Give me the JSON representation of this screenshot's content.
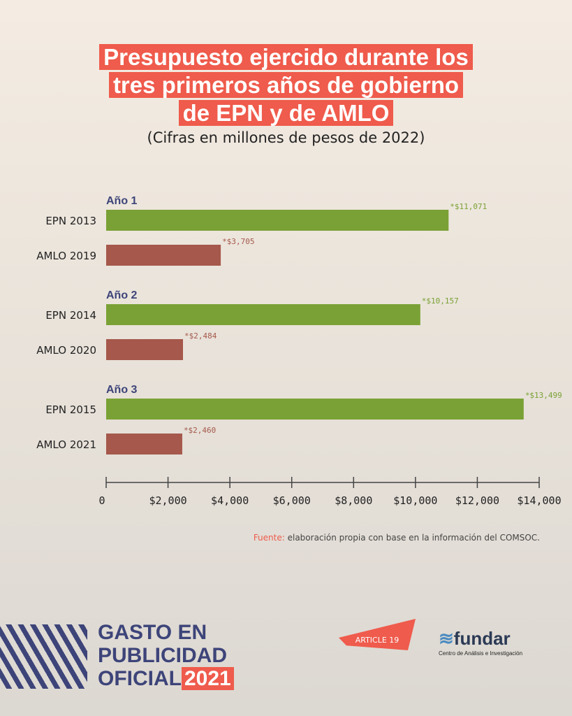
{
  "chart_data": {
    "type": "bar",
    "orientation": "horizontal",
    "title": [
      "Presupuesto ejercido durante los",
      "tres primeros años de gobierno",
      "de EPN y de AMLO"
    ],
    "subtitle": "(Cifras en millones de pesos de 2022)",
    "xlim": [
      0,
      14000
    ],
    "xticks": [
      "0",
      "$2,000",
      "$4,000",
      "$6,000",
      "$8,000",
      "$10,000",
      "$12,000",
      "$14,000"
    ],
    "groups": [
      {
        "label": "Año 1",
        "bars": [
          {
            "category": "EPN 2013",
            "value": 11071,
            "label": "*$11,071",
            "color": "#7aa135"
          },
          {
            "category": "AMLO 2019",
            "value": 3705,
            "label": "*$3,705",
            "color": "#a5584b"
          }
        ]
      },
      {
        "label": "Año 2",
        "bars": [
          {
            "category": "EPN 2014",
            "value": 10157,
            "label": "*$10,157",
            "color": "#7aa135"
          },
          {
            "category": "AMLO 2020",
            "value": 2484,
            "label": "*$2,484",
            "color": "#a5584b"
          }
        ]
      },
      {
        "label": "Año 3",
        "bars": [
          {
            "category": "EPN 2015",
            "value": 13499,
            "label": "*$13,499",
            "color": "#7aa135"
          },
          {
            "category": "AMLO 2021",
            "value": 2460,
            "label": "*$2,460",
            "color": "#a5584b"
          }
        ]
      }
    ],
    "grid": false
  },
  "source": {
    "label": "Fuente:",
    "text": " elaboración propia con base en la información del COMSOC."
  },
  "branding": {
    "line1": "GASTO EN",
    "line2": "PUBLICIDAD",
    "line3": "OFICIAL",
    "year": "2021",
    "article": "ARTICLE 19",
    "fundar": "fundar",
    "fundar_sub": "Centro de Análisis e Investigación"
  }
}
